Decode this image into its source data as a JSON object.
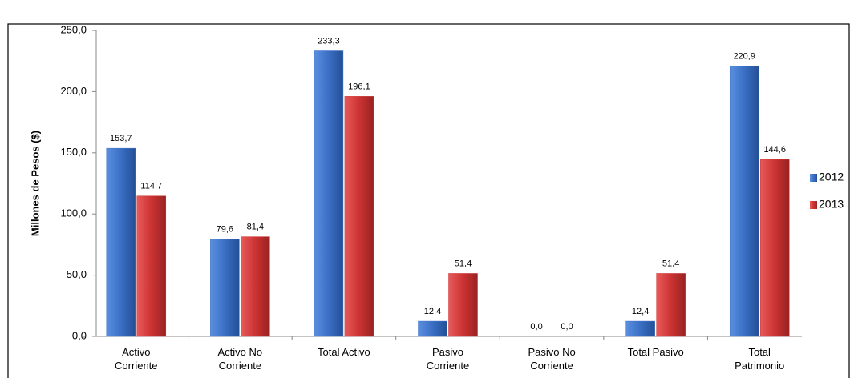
{
  "chart_data": {
    "type": "bar",
    "y_label": "Millones de Pesos ($)",
    "categories": [
      "Activo Corriente",
      "Activo No Corriente",
      "Total Activo",
      "Pasivo Corriente",
      "Pasivo No Corriente",
      "Total Pasivo",
      "Total Patrimonio"
    ],
    "series": [
      {
        "name": "2012",
        "color": "#3a6fc4",
        "values": [
          153.7,
          79.6,
          233.3,
          12.4,
          0,
          12.4,
          220.9
        ],
        "value_labels": [
          "153,7",
          "79,6",
          "233,3",
          "12,4",
          "0,0",
          "12,4",
          "220,9"
        ]
      },
      {
        "name": "2013",
        "color": "#cc3333",
        "values": [
          114.7,
          81.4,
          196.1,
          51.4,
          0,
          51.4,
          144.6
        ],
        "value_labels": [
          "114,7",
          "81,4",
          "196,1",
          "51,4",
          "0,0",
          "51,4",
          "144,6"
        ]
      }
    ],
    "ylim": [
      0,
      250
    ],
    "yticks": [
      {
        "value": 0,
        "label": "0,0"
      },
      {
        "value": 50,
        "label": "50,0"
      },
      {
        "value": 100,
        "label": "100,0"
      },
      {
        "value": 150,
        "label": "150,0"
      },
      {
        "value": 200,
        "label": "200,0"
      },
      {
        "value": 250,
        "label": "250,0"
      }
    ],
    "legend": "right"
  }
}
